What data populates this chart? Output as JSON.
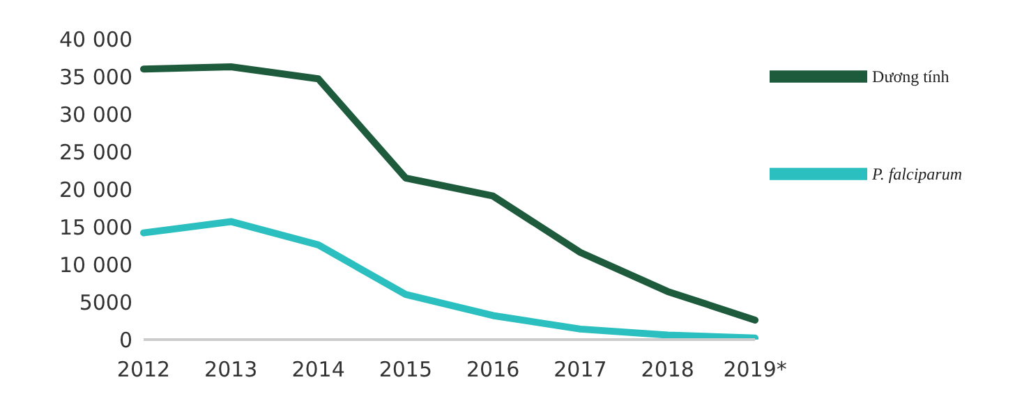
{
  "chart_data": {
    "type": "line",
    "categories": [
      "2012",
      "2013",
      "2014",
      "2015",
      "2016",
      "2017",
      "2018",
      "2019*"
    ],
    "series": [
      {
        "name": "Dương tính",
        "color": "#1e5a3c",
        "values": [
          36000,
          36300,
          34700,
          21500,
          19100,
          11600,
          6400,
          2600
        ]
      },
      {
        "name": "P. falciparum",
        "color": "#2bbfbf",
        "values": [
          14200,
          15700,
          12600,
          6000,
          3200,
          1400,
          600,
          200
        ]
      }
    ],
    "ylim": [
      0,
      40000
    ],
    "yticks": [
      0,
      5000,
      {
        "value": 10000,
        "label": "10 000"
      },
      {
        "value": 15000,
        "label": "15 000"
      },
      {
        "value": 20000,
        "label": "20 000"
      },
      {
        "value": 25000,
        "label": "25 000"
      },
      {
        "value": 30000,
        "label": "30 000"
      },
      {
        "value": 35000,
        "label": "35 000"
      },
      {
        "value": 40000,
        "label": "40 000"
      }
    ],
    "grid": false,
    "legend": "top right",
    "marker": "none",
    "line_style": "solid"
  }
}
